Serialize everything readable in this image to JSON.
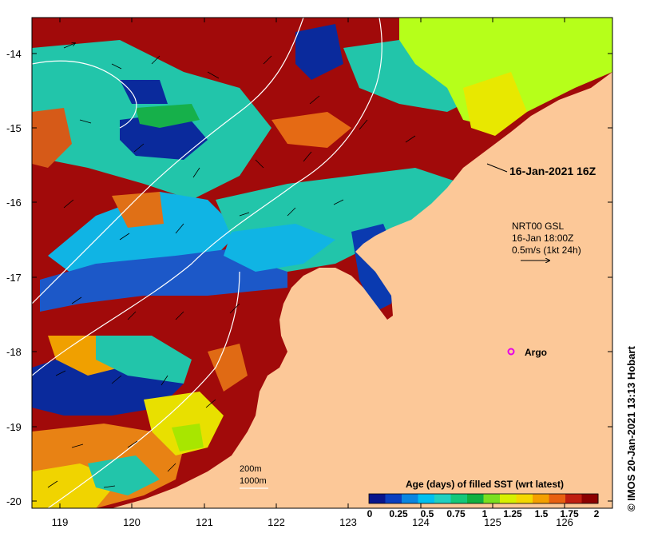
{
  "map": {
    "timestamp_label": "16-Jan-2021 16Z",
    "current_legend": {
      "line1": "NRT00 GSL",
      "line2": "16-Jan 18:00Z",
      "line3": "0.5m/s (1kt 24h)"
    },
    "argo_label": "Argo",
    "contour_labels": [
      "200m",
      "1000m"
    ],
    "colorbar": {
      "title": "Age (days) of filled SST (wrt latest)",
      "ticks": [
        "0",
        "0.25",
        "0.5",
        "0.75",
        "1",
        "1.25",
        "1.5",
        "1.75",
        "2"
      ],
      "colors": [
        "#08158c",
        "#0b3fbf",
        "#0a86e0",
        "#00c0ef",
        "#21d0c0",
        "#14c87a",
        "#10b040",
        "#7ae020",
        "#d8f000",
        "#f4d800",
        "#f4a000",
        "#e86010",
        "#c01e10",
        "#8c0000"
      ]
    },
    "lat_labels": [
      "-14",
      "-15",
      "-16",
      "-17",
      "-18",
      "-19",
      "-20"
    ],
    "lon_labels": [
      "119",
      "120",
      "121",
      "122",
      "123",
      "124",
      "125",
      "126"
    ],
    "credit": "© IMOS 20-Jan-2021 13:13 Hobart",
    "colors": {
      "land": "#fcc898",
      "deep_red": "#a10a0a",
      "teal": "#22c5aa",
      "blue": "#0a2a9c",
      "cyan": "#10b4e4",
      "orange": "#e56a14",
      "yellow": "#e8e800",
      "lime": "#b6ff1a"
    }
  }
}
